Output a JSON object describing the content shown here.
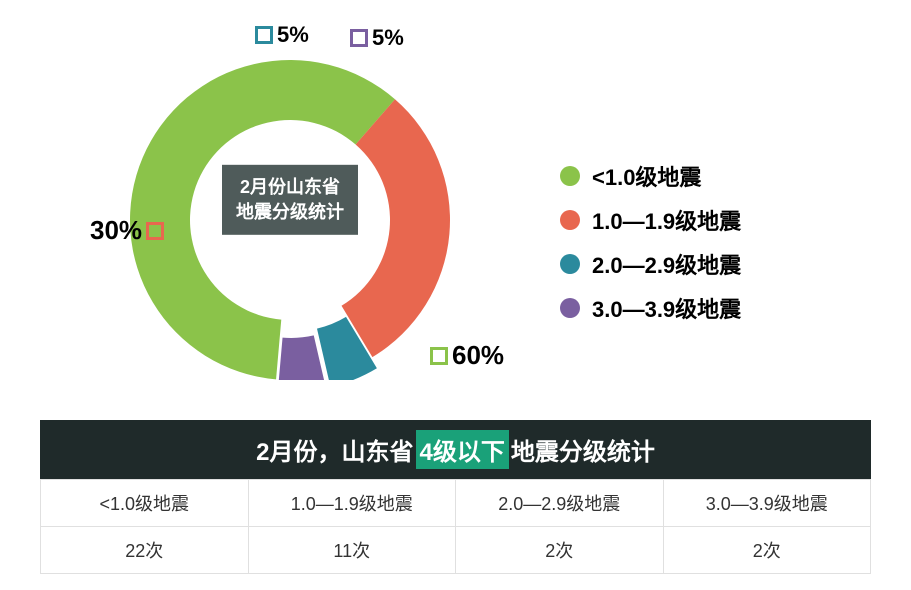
{
  "chart": {
    "type": "donut",
    "center_label_line1": "2月份山东省",
    "center_label_line2": "地震分级统计",
    "center_bg": "#4f5b5a",
    "background": "#ffffff",
    "inner_radius": 100,
    "outer_radius": 160,
    "slices": [
      {
        "label": "<1.0级地震",
        "value": 60,
        "pct_text": "60%",
        "color": "#8bc34a",
        "pop": 0
      },
      {
        "label": "1.0—1.9级地震",
        "value": 30,
        "pct_text": "30%",
        "color": "#e8674f",
        "pop": 0
      },
      {
        "label": "2.0—2.9级地震",
        "value": 5,
        "pct_text": "5%",
        "color": "#2b8a9d",
        "pop": 12
      },
      {
        "label": "3.0—3.9级地震",
        "value": 5,
        "pct_text": "5%",
        "color": "#7a5fa0",
        "pop": 18
      }
    ]
  },
  "legend": {
    "items": [
      {
        "label": "<1.0级地震",
        "color": "#8bc34a"
      },
      {
        "label": "1.0—1.9级地震",
        "color": "#e8674f"
      },
      {
        "label": "2.0—2.9级地震",
        "color": "#2b8a9d"
      },
      {
        "label": "3.0—3.9级地震",
        "color": "#7a5fa0"
      }
    ]
  },
  "table": {
    "title_pre": "2月份，山东省",
    "title_hl": "4级以下",
    "title_post": "地震分级统计",
    "title_bg": "#1f2a2a",
    "hl_bg": "#1aa179",
    "columns": [
      "<1.0级地震",
      "1.0—1.9级地震",
      "2.0—2.9级地震",
      "3.0—3.9级地震"
    ],
    "values": [
      "22次",
      "11次",
      "2次",
      "2次"
    ],
    "border_color": "#e0e0e0"
  }
}
